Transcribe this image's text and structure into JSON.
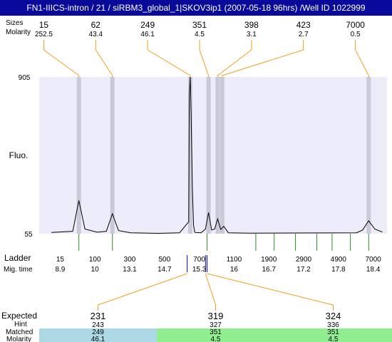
{
  "header": {
    "title": "FN1-IIICS-intron / 21 / siRBM3_global_1|SKOV3ip1 (2007-05-18 96hrs) /Well ID 1022999"
  },
  "labels": {
    "sizes": "Sizes",
    "molarity": "Molarity",
    "fluo": "Fluo.",
    "ladder": "Ladder",
    "mig_time": "Mig. time",
    "expected": "Expected",
    "hint": "Hint",
    "matched": "Matched",
    "molarity_bottom": "Molarity"
  },
  "colors": {
    "plot_bg": "#ececfa",
    "band": "#c9c9d9",
    "callout": "#f0a020",
    "ladder_tick": "#2e8b2e",
    "trace": "#000000",
    "expected_red": "#dd1111",
    "cell_blue": "#add8e6",
    "cell_green": "#90ee90",
    "title_bg": "#0a0a9a"
  },
  "chart_data": {
    "type": "line",
    "xlabel": "",
    "ylabel": "Fluo.",
    "ylim": [
      55,
      905
    ],
    "y_ticks": [
      905,
      55
    ],
    "x": [
      8.0,
      8.7,
      8.9,
      9.1,
      9.5,
      9.8,
      10.0,
      10.2,
      10.6,
      11.5,
      12.2,
      12.5,
      12.52,
      12.55,
      12.58,
      12.62,
      12.66,
      12.7,
      12.9,
      13.05,
      13.15,
      13.25,
      13.35,
      13.45,
      13.55,
      13.65,
      13.8,
      14.5,
      16.0,
      18.0,
      18.2,
      18.4,
      18.6,
      18.85
    ],
    "y": [
      62,
      68,
      235,
      80,
      63,
      68,
      163,
      72,
      60,
      57,
      60,
      120,
      800,
      905,
      700,
      300,
      100,
      62,
      60,
      80,
      170,
      75,
      80,
      135,
      78,
      95,
      60,
      58,
      59,
      60,
      75,
      125,
      80,
      64
    ],
    "peaks": [
      {
        "size": "15",
        "molarity": "252.5",
        "mig_time": 8.9
      },
      {
        "size": "62",
        "molarity": "43.4",
        "mig_time": 10.0
      },
      {
        "size": "249",
        "molarity": "46.1",
        "mig_time": 12.55
      },
      {
        "size": "351",
        "molarity": "4.5",
        "mig_time": 13.15
      },
      {
        "size": "398",
        "molarity": "3.1",
        "mig_time": 13.45
      },
      {
        "size": "423",
        "molarity": "2.7",
        "mig_time": 13.6
      },
      {
        "size": "7000",
        "molarity": "0.5",
        "mig_time": 18.4
      }
    ],
    "ladder": [
      {
        "size": "15",
        "time": "8.9"
      },
      {
        "size": "100",
        "time": "10"
      },
      {
        "size": "300",
        "time": "13.1"
      },
      {
        "size": "500",
        "time": "14.7"
      },
      {
        "size": "700",
        "time": "15.3"
      },
      {
        "size": "1100",
        "time": "16"
      },
      {
        "size": "1900",
        "time": "16.7"
      },
      {
        "size": "2900",
        "time": "17.2"
      },
      {
        "size": "4900",
        "time": "17.8"
      },
      {
        "size": "7000",
        "time": "18.4"
      }
    ],
    "expected": [
      {
        "expected": "231",
        "hint": "243",
        "matched": "249",
        "molarity": "46.1",
        "expected_color": "#dd1111",
        "cell_color": "#add8e6",
        "marker_time": 12.45
      },
      {
        "expected": "319",
        "hint": "327",
        "matched": "351",
        "molarity": "4.5",
        "expected_color": "#dd1111",
        "cell_color": "#90ee90",
        "marker_time": 13.05
      },
      {
        "expected": "324",
        "hint": "336",
        "matched": "351",
        "molarity": "4.5",
        "expected_color": "#000000",
        "cell_color": "#90ee90",
        "marker_time": 13.1
      }
    ]
  }
}
